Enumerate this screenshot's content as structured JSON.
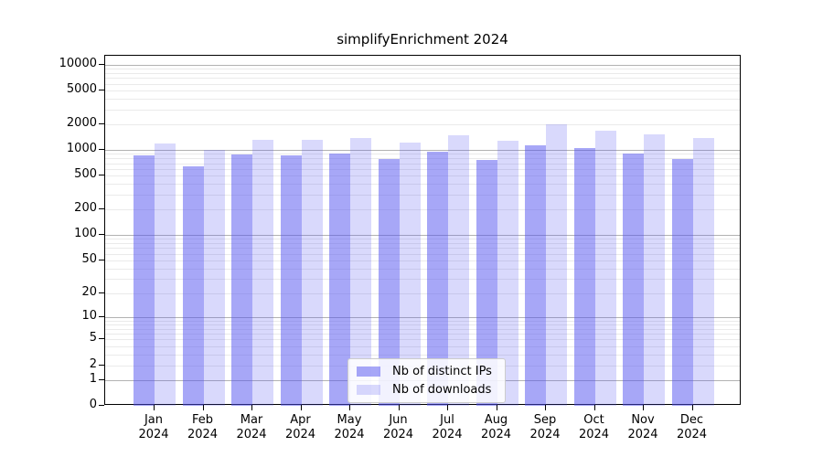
{
  "title": "simplifyEnrichment 2024",
  "chart_data": {
    "type": "bar",
    "title": "simplifyEnrichment 2024",
    "scale": "log1p",
    "grid": true,
    "ylim": [
      0,
      12800
    ],
    "y_ticks": [
      0,
      1,
      2,
      5,
      10,
      20,
      50,
      100,
      200,
      500,
      1000,
      2000,
      5000,
      10000
    ],
    "categories": [
      {
        "month": "Jan",
        "year": "2024"
      },
      {
        "month": "Feb",
        "year": "2024"
      },
      {
        "month": "Mar",
        "year": "2024"
      },
      {
        "month": "Apr",
        "year": "2024"
      },
      {
        "month": "May",
        "year": "2024"
      },
      {
        "month": "Jun",
        "year": "2024"
      },
      {
        "month": "Jul",
        "year": "2024"
      },
      {
        "month": "Aug",
        "year": "2024"
      },
      {
        "month": "Sep",
        "year": "2024"
      },
      {
        "month": "Oct",
        "year": "2024"
      },
      {
        "month": "Nov",
        "year": "2024"
      },
      {
        "month": "Dec",
        "year": "2024"
      }
    ],
    "series": [
      {
        "name": "Nb of distinct IPs",
        "values": [
          860,
          650,
          880,
          860,
          900,
          780,
          960,
          770,
          1130,
          1050,
          900,
          790
        ]
      },
      {
        "name": "Nb of downloads",
        "values": [
          1200,
          1010,
          1310,
          1330,
          1390,
          1210,
          1490,
          1280,
          2020,
          1680,
          1540,
          1370
        ]
      }
    ],
    "legend_position": "bottom-center"
  },
  "colors": {
    "bar_distinct_ips": "rgba(80,80,240,0.5)",
    "bar_downloads": "rgba(80,80,240,0.22)",
    "grid_major": "#b2b2b2",
    "grid_minor": "#eaeaea",
    "axis": "#000000",
    "text": "#000000",
    "legend_border": "#cccccc"
  },
  "legend": {
    "items": [
      {
        "label": "Nb of distinct IPs"
      },
      {
        "label": "Nb of downloads"
      }
    ]
  }
}
